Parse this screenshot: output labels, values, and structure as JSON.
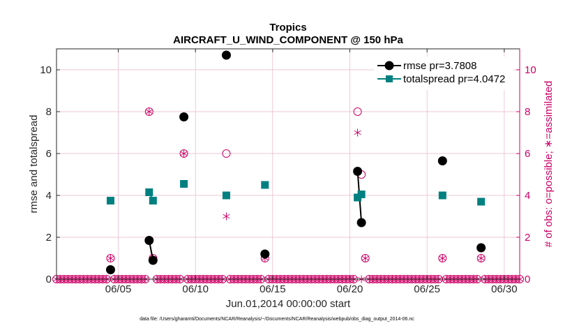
{
  "chart_data": {
    "type": "scatter",
    "title": "Tropics",
    "subtitle": "AIRCRAFT_U_WIND_COMPONENT @ 150 hPa",
    "xlabel": "Jun.01,2014 00:00:00 start",
    "ylabel_left": "rmse and totalspread",
    "ylabel_right": "# of obs: o=possible; ∗=assimilated",
    "footer": "data file: /Users/gharamti/Documents/NCAR/Reanalysis/~/Documents/NCAR/Reanalysis/webpub/obs_diag_output_2014-06.nc",
    "xlim": [
      1,
      31
    ],
    "ylim_left": [
      0,
      11
    ],
    "ylim_right": [
      0,
      11
    ],
    "x_ticks": [
      5,
      10,
      15,
      20,
      25,
      30
    ],
    "x_tick_labels": [
      "06/05",
      "06/10",
      "06/15",
      "06/20",
      "06/25",
      "06/30"
    ],
    "y_ticks": [
      0,
      2,
      4,
      6,
      8,
      10
    ],
    "y_tick_labels": [
      "0",
      "2",
      "4",
      "6",
      "8",
      "10"
    ],
    "y2_tick_labels": [
      "0",
      "2",
      "4",
      "6",
      "8",
      "10"
    ],
    "colors": {
      "rmse": "#000000",
      "totalspread": "#008080",
      "obs": "#cc0066",
      "grid": "#e8b4c8",
      "axis": "#262626"
    },
    "legend": [
      {
        "name": "rmse",
        "label": "rmse pr=3.7808"
      },
      {
        "name": "totalspread",
        "label": "totalspread pr=4.0472"
      }
    ],
    "series": [
      {
        "name": "rmse",
        "segments": [
          [
            [
              4.5,
              0.45
            ]
          ],
          [
            [
              7.0,
              1.85
            ],
            [
              7.25,
              0.9
            ]
          ],
          [
            [
              9.25,
              7.75
            ]
          ],
          [
            [
              12.0,
              10.7
            ]
          ],
          [
            [
              14.5,
              1.2
            ]
          ],
          [
            [
              20.5,
              5.15
            ],
            [
              20.75,
              2.7
            ]
          ],
          [
            [
              26.0,
              5.65
            ]
          ],
          [
            [
              28.5,
              1.5
            ]
          ]
        ]
      },
      {
        "name": "totalspread",
        "segments": [
          [
            [
              4.5,
              3.75
            ]
          ],
          [
            [
              7.0,
              4.15
            ],
            [
              7.25,
              3.75
            ]
          ],
          [
            [
              9.25,
              4.55
            ]
          ],
          [
            [
              12.0,
              4.0
            ]
          ],
          [
            [
              14.5,
              4.5
            ]
          ],
          [
            [
              20.5,
              3.9
            ],
            [
              20.75,
              4.05
            ]
          ],
          [
            [
              26.0,
              4.0
            ]
          ],
          [
            [
              28.5,
              3.7
            ]
          ]
        ]
      }
    ],
    "obs_possible": {
      "x": [
        4.5,
        7.0,
        7.25,
        9.25,
        12.0,
        14.5,
        20.5,
        20.75,
        21.0,
        26.0,
        28.5
      ],
      "y": [
        1,
        8,
        1,
        6,
        6,
        1,
        8,
        5,
        1,
        1,
        1
      ]
    },
    "obs_assimilated": {
      "x": [
        4.5,
        7.0,
        7.25,
        9.25,
        12.0,
        14.5,
        20.5,
        20.75,
        21.0,
        26.0,
        28.5
      ],
      "y": [
        1,
        8,
        1,
        6,
        3,
        1,
        7,
        0,
        1,
        1,
        1
      ]
    },
    "zero_markers": {
      "start": 1.0,
      "end": 31.0,
      "step": 0.25
    }
  }
}
